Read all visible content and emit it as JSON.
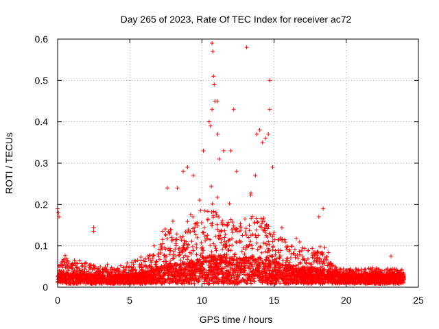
{
  "chart_data": {
    "type": "scatter",
    "title": "Day 265 of 2023, Rate Of TEC Index for receiver ac72",
    "xlabel": "GPS time / hours",
    "ylabel": "ROTI / TECUs",
    "xlim": [
      0,
      25
    ],
    "ylim": [
      0,
      0.6
    ],
    "xticks": [
      "0",
      "5",
      "10",
      "15",
      "20",
      "25"
    ],
    "yticks": [
      "0",
      "0.1",
      "0.2",
      "0.3",
      "0.4",
      "0.5",
      "0.6"
    ],
    "grid": true,
    "marker": "+",
    "color": "#ff0000",
    "profile": [
      {
        "x": 0.0,
        "baseline": 0.025,
        "envelope": 0.05
      },
      {
        "x": 0.5,
        "baseline": 0.03,
        "envelope": 0.09
      },
      {
        "x": 1.0,
        "baseline": 0.025,
        "envelope": 0.07
      },
      {
        "x": 2.0,
        "baseline": 0.025,
        "envelope": 0.07
      },
      {
        "x": 3.0,
        "baseline": 0.02,
        "envelope": 0.06
      },
      {
        "x": 4.0,
        "baseline": 0.02,
        "envelope": 0.05
      },
      {
        "x": 5.0,
        "baseline": 0.025,
        "envelope": 0.06
      },
      {
        "x": 6.0,
        "baseline": 0.03,
        "envelope": 0.08
      },
      {
        "x": 7.0,
        "baseline": 0.04,
        "envelope": 0.12
      },
      {
        "x": 7.5,
        "baseline": 0.05,
        "envelope": 0.2
      },
      {
        "x": 8.5,
        "baseline": 0.05,
        "envelope": 0.16
      },
      {
        "x": 9.5,
        "baseline": 0.06,
        "envelope": 0.2
      },
      {
        "x": 10.5,
        "baseline": 0.07,
        "envelope": 0.28
      },
      {
        "x": 11.5,
        "baseline": 0.07,
        "envelope": 0.22
      },
      {
        "x": 12.5,
        "baseline": 0.06,
        "envelope": 0.2
      },
      {
        "x": 13.5,
        "baseline": 0.07,
        "envelope": 0.24
      },
      {
        "x": 14.5,
        "baseline": 0.06,
        "envelope": 0.2
      },
      {
        "x": 15.5,
        "baseline": 0.05,
        "envelope": 0.15
      },
      {
        "x": 16.5,
        "baseline": 0.04,
        "envelope": 0.12
      },
      {
        "x": 17.5,
        "baseline": 0.04,
        "envelope": 0.12
      },
      {
        "x": 18.5,
        "baseline": 0.035,
        "envelope": 0.1
      },
      {
        "x": 19.5,
        "baseline": 0.025,
        "envelope": 0.045
      },
      {
        "x": 20.5,
        "baseline": 0.025,
        "envelope": 0.045
      },
      {
        "x": 21.5,
        "baseline": 0.025,
        "envelope": 0.05
      },
      {
        "x": 22.5,
        "baseline": 0.025,
        "envelope": 0.045
      },
      {
        "x": 24.0,
        "baseline": 0.025,
        "envelope": 0.045
      }
    ],
    "notable_points": [
      {
        "x": 0.0,
        "y": 0.19
      },
      {
        "x": 0.05,
        "y": 0.18
      },
      {
        "x": 0.1,
        "y": 0.17
      },
      {
        "x": 2.5,
        "y": 0.135
      },
      {
        "x": 2.5,
        "y": 0.145
      },
      {
        "x": 7.6,
        "y": 0.24
      },
      {
        "x": 8.3,
        "y": 0.24
      },
      {
        "x": 8.7,
        "y": 0.28
      },
      {
        "x": 9.0,
        "y": 0.29
      },
      {
        "x": 9.4,
        "y": 0.27
      },
      {
        "x": 10.1,
        "y": 0.33
      },
      {
        "x": 10.5,
        "y": 0.4
      },
      {
        "x": 10.6,
        "y": 0.39
      },
      {
        "x": 10.7,
        "y": 0.59
      },
      {
        "x": 10.75,
        "y": 0.57
      },
      {
        "x": 10.8,
        "y": 0.51
      },
      {
        "x": 10.85,
        "y": 0.49
      },
      {
        "x": 10.9,
        "y": 0.45
      },
      {
        "x": 11.05,
        "y": 0.45
      },
      {
        "x": 10.7,
        "y": 0.43
      },
      {
        "x": 11.1,
        "y": 0.37
      },
      {
        "x": 11.2,
        "y": 0.31
      },
      {
        "x": 11.5,
        "y": 0.33
      },
      {
        "x": 12.2,
        "y": 0.43
      },
      {
        "x": 12.0,
        "y": 0.33
      },
      {
        "x": 12.4,
        "y": 0.28
      },
      {
        "x": 13.1,
        "y": 0.58
      },
      {
        "x": 13.8,
        "y": 0.37
      },
      {
        "x": 14.0,
        "y": 0.38
      },
      {
        "x": 14.2,
        "y": 0.35
      },
      {
        "x": 14.4,
        "y": 0.36
      },
      {
        "x": 14.7,
        "y": 0.5
      },
      {
        "x": 14.7,
        "y": 0.43
      },
      {
        "x": 14.6,
        "y": 0.37
      },
      {
        "x": 14.9,
        "y": 0.29
      },
      {
        "x": 13.7,
        "y": 0.27
      },
      {
        "x": 18.4,
        "y": 0.19
      },
      {
        "x": 18.1,
        "y": 0.17
      },
      {
        "x": 23.1,
        "y": 0.075
      }
    ]
  }
}
